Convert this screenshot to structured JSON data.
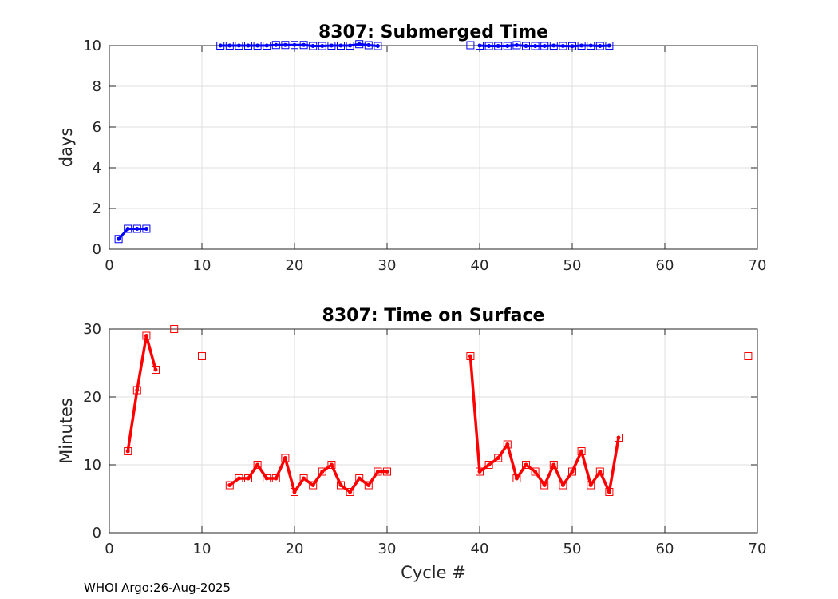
{
  "footer": "WHOI Argo:26-Aug-2025",
  "chart_data": [
    {
      "type": "line",
      "title": "8307: Submerged Time",
      "xlabel": "",
      "ylabel": "days",
      "xlim": [
        0,
        70
      ],
      "ylim": [
        0,
        10
      ],
      "xticks": [
        0,
        10,
        20,
        30,
        40,
        50,
        60,
        70
      ],
      "yticks": [
        0,
        2,
        4,
        6,
        8,
        10
      ],
      "grid": true,
      "color": "#0000ff",
      "series": [
        {
          "x": [
            1,
            2,
            3,
            4,
            12,
            13,
            14,
            15,
            16,
            17,
            18,
            19,
            20,
            21,
            22,
            23,
            24,
            25,
            26,
            27,
            28,
            29,
            39,
            40,
            41,
            42,
            43,
            44,
            45,
            46,
            47,
            48,
            49,
            50,
            51,
            52,
            53,
            54
          ],
          "y": [
            0.5,
            1.0,
            1.0,
            1.0,
            10.0,
            10.0,
            10.0,
            10.0,
            10.0,
            10.0,
            10.03,
            10.03,
            10.03,
            10.03,
            9.98,
            9.98,
            10.0,
            10.0,
            10.0,
            10.07,
            10.02,
            9.98,
            10.02,
            10.0,
            9.98,
            9.98,
            9.98,
            10.02,
            9.98,
            9.98,
            9.98,
            10.0,
            9.98,
            9.97,
            10.0,
            10.0,
            9.98,
            10.0
          ],
          "line_segments": [
            [
              0,
              3
            ],
            [
              4,
              21
            ],
            [
              23,
              37
            ]
          ]
        }
      ]
    },
    {
      "type": "line",
      "title": "8307: Time on Surface",
      "xlabel": "Cycle #",
      "ylabel": "Minutes",
      "xlim": [
        0,
        70
      ],
      "ylim": [
        0,
        30
      ],
      "xticks": [
        0,
        10,
        20,
        30,
        40,
        50,
        60,
        70
      ],
      "yticks": [
        0,
        10,
        20,
        30
      ],
      "grid": true,
      "color": "#ff0000",
      "series": [
        {
          "x": [
            2,
            3,
            4,
            5,
            7,
            10,
            13,
            14,
            15,
            16,
            17,
            18,
            19,
            20,
            21,
            22,
            23,
            24,
            25,
            26,
            27,
            28,
            29,
            30,
            39,
            40,
            41,
            42,
            43,
            44,
            45,
            46,
            47,
            48,
            49,
            50,
            51,
            52,
            53,
            54,
            55,
            69
          ],
          "y": [
            12,
            21,
            29,
            24,
            30,
            26,
            7,
            8,
            8,
            10,
            8,
            8,
            11,
            6,
            8,
            7,
            9,
            10,
            7,
            6,
            8,
            7,
            9,
            9,
            26,
            9,
            10,
            11,
            13,
            8,
            10,
            9,
            7,
            10,
            7,
            9,
            12,
            7,
            9,
            6,
            14,
            26
          ],
          "line_segments": [
            [
              0,
              3
            ],
            [
              6,
              23
            ],
            [
              24,
              40
            ]
          ]
        }
      ]
    }
  ]
}
